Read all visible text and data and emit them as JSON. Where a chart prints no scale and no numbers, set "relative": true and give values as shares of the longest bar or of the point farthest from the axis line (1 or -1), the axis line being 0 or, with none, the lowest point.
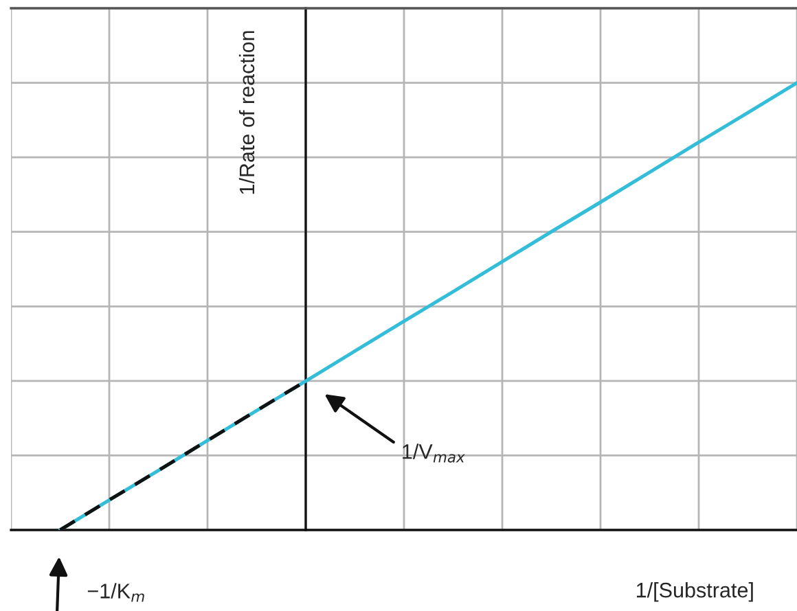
{
  "chart_data": {
    "type": "line",
    "relative": true,
    "xlabel": "1/[Substrate]",
    "ylabel": "1/Rate of reaction",
    "categories": [
      null,
      null,
      null,
      null,
      null,
      null,
      null,
      null,
      null,
      null,
      null,
      null,
      null,
      null,
      null,
      null,
      null
    ],
    "grid": true,
    "marker": "none",
    "series": [
      {
        "color": "#33bdd8",
        "line_style": "solid",
        "values": [
          null,
          0,
          0.067,
          0.133,
          0.2,
          0.267,
          0.333,
          0.4,
          0.467,
          0.533,
          0.6,
          0.667,
          0.733,
          0.8,
          0.867,
          0.933,
          1
        ]
      },
      {
        "color": "#111111",
        "line_style": "dashed",
        "values": [
          null,
          0,
          0.067,
          0.133,
          0.2,
          0.267,
          0.333,
          null,
          null,
          null,
          null,
          null,
          null,
          null,
          null,
          null,
          null
        ]
      }
    ],
    "annotations": [
      "1/V$_{max}$",
      "−1/K$_{m}$"
    ]
  }
}
